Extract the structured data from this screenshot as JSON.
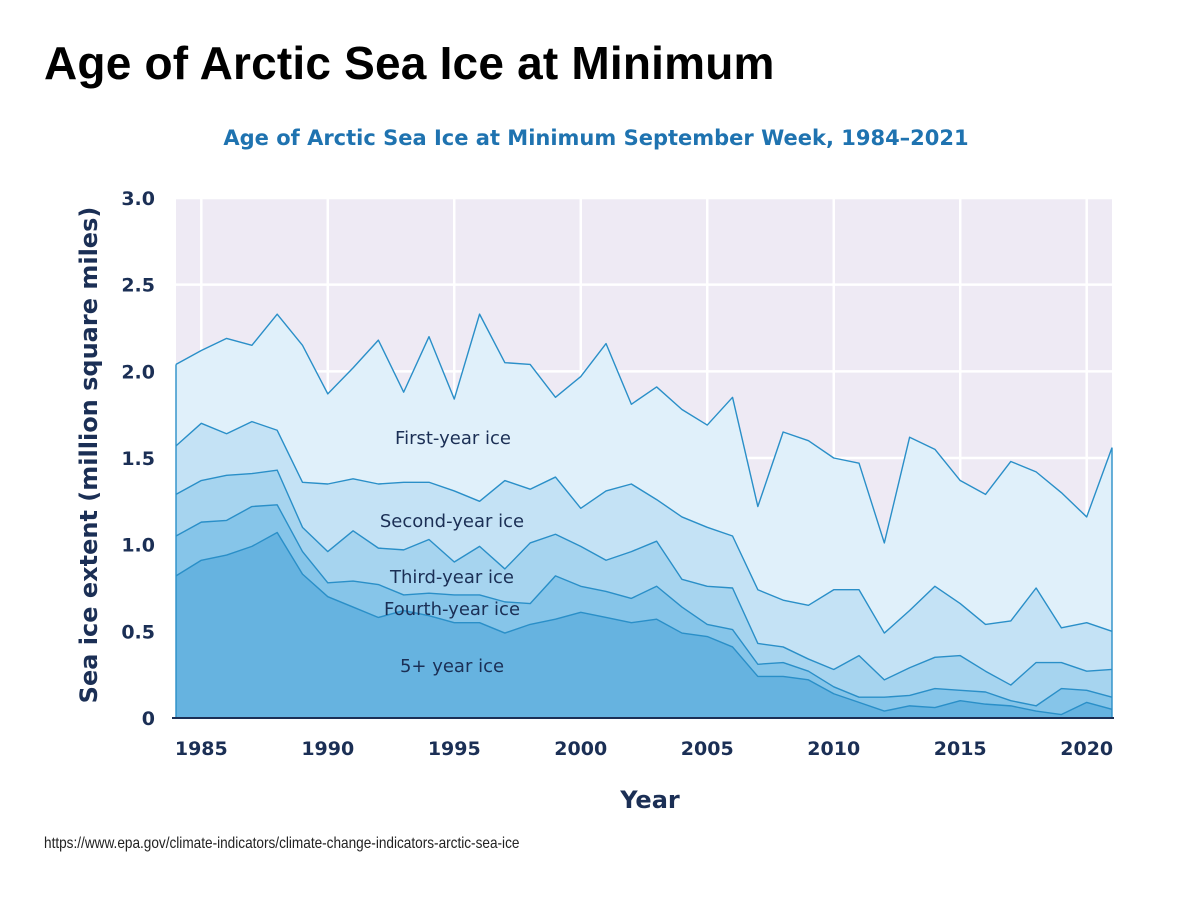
{
  "page": {
    "title": "Age of Arctic Sea Ice at Minimum",
    "source_url": "https://www.epa.gov/climate-indicators/climate-change-indicators-arctic-sea-ice"
  },
  "colors": {
    "background": "#eeeaf4",
    "grid": "#ffffff",
    "line": "#2a8fc8",
    "title": "#1f73b0",
    "text": "#1b2f55",
    "layers": [
      "#66b3e0",
      "#86c5e9",
      "#a6d4ef",
      "#c4e2f5",
      "#e0f0fa"
    ]
  },
  "chart_data": {
    "type": "area",
    "stacked": true,
    "title": "Age of Arctic Sea Ice at Minimum September Week, 1984–2021",
    "xlabel": "Year",
    "ylabel": "Sea ice extent (million square miles)",
    "xlim": [
      1984,
      2021
    ],
    "ylim": [
      0,
      3.0
    ],
    "xticks": [
      "1985",
      "1990",
      "1995",
      "2000",
      "2005",
      "2010",
      "2015",
      "2020"
    ],
    "yticks": [
      "0",
      "0.5",
      "1.0",
      "1.5",
      "2.0",
      "2.5",
      "3.0"
    ],
    "grid": true,
    "x": [
      1984,
      1985,
      1986,
      1987,
      1988,
      1989,
      1990,
      1991,
      1992,
      1993,
      1994,
      1995,
      1996,
      1997,
      1998,
      1999,
      2000,
      2001,
      2002,
      2003,
      2004,
      2005,
      2006,
      2007,
      2008,
      2009,
      2010,
      2011,
      2012,
      2013,
      2014,
      2015,
      2016,
      2017,
      2018,
      2019,
      2020,
      2021
    ],
    "series": [
      {
        "name": "5+ year ice",
        "values": [
          0.82,
          0.91,
          0.94,
          0.99,
          1.07,
          0.83,
          0.7,
          0.64,
          0.58,
          0.62,
          0.59,
          0.55,
          0.55,
          0.49,
          0.54,
          0.57,
          0.61,
          0.58,
          0.55,
          0.57,
          0.49,
          0.47,
          0.41,
          0.24,
          0.24,
          0.22,
          0.14,
          0.09,
          0.04,
          0.07,
          0.06,
          0.1,
          0.08,
          0.07,
          0.04,
          0.02,
          0.09,
          0.05
        ]
      },
      {
        "name": "Fourth-year ice",
        "values": [
          0.23,
          0.22,
          0.2,
          0.23,
          0.16,
          0.13,
          0.08,
          0.15,
          0.19,
          0.09,
          0.13,
          0.16,
          0.16,
          0.18,
          0.12,
          0.25,
          0.15,
          0.15,
          0.14,
          0.19,
          0.15,
          0.07,
          0.1,
          0.07,
          0.08,
          0.05,
          0.04,
          0.03,
          0.08,
          0.06,
          0.11,
          0.06,
          0.07,
          0.03,
          0.03,
          0.15,
          0.07,
          0.07
        ]
      },
      {
        "name": "Third-year ice",
        "values": [
          0.24,
          0.24,
          0.26,
          0.19,
          0.2,
          0.14,
          0.18,
          0.29,
          0.21,
          0.26,
          0.31,
          0.19,
          0.28,
          0.19,
          0.35,
          0.24,
          0.23,
          0.18,
          0.27,
          0.26,
          0.16,
          0.22,
          0.24,
          0.12,
          0.09,
          0.07,
          0.1,
          0.24,
          0.1,
          0.16,
          0.18,
          0.2,
          0.12,
          0.09,
          0.25,
          0.15,
          0.11,
          0.16
        ]
      },
      {
        "name": "Second-year ice",
        "values": [
          0.28,
          0.33,
          0.24,
          0.3,
          0.23,
          0.26,
          0.39,
          0.3,
          0.37,
          0.39,
          0.33,
          0.41,
          0.26,
          0.51,
          0.31,
          0.33,
          0.22,
          0.4,
          0.39,
          0.24,
          0.36,
          0.34,
          0.3,
          0.31,
          0.27,
          0.31,
          0.46,
          0.38,
          0.27,
          0.33,
          0.41,
          0.3,
          0.27,
          0.37,
          0.43,
          0.2,
          0.28,
          0.22
        ]
      },
      {
        "name": "First-year ice",
        "values": [
          0.47,
          0.42,
          0.55,
          0.44,
          0.67,
          0.79,
          0.52,
          0.64,
          0.83,
          0.52,
          0.84,
          0.53,
          1.08,
          0.68,
          0.72,
          0.46,
          0.76,
          0.85,
          0.46,
          0.65,
          0.62,
          0.59,
          0.8,
          0.48,
          0.97,
          0.95,
          0.76,
          0.73,
          0.52,
          1.0,
          0.79,
          0.71,
          0.75,
          0.92,
          0.67,
          0.78,
          0.61,
          1.06
        ]
      }
    ],
    "annotations": [
      "First-year ice",
      "Second-year ice",
      "Third-year ice",
      "Fourth-year ice",
      "5+ year ice"
    ]
  }
}
